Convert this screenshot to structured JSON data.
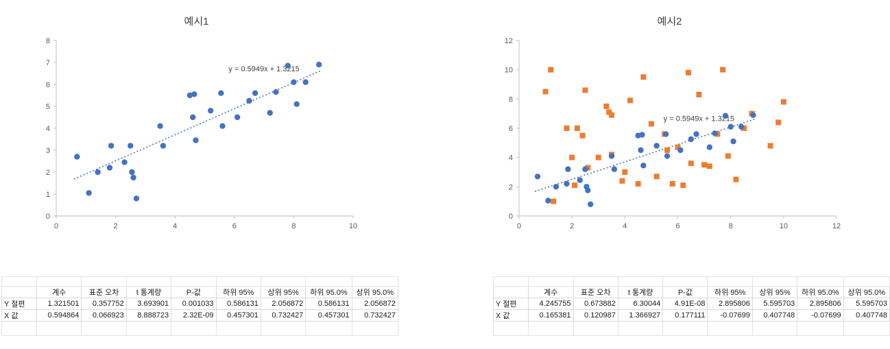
{
  "colors": {
    "series_blue": "#4472C4",
    "series_orange": "#ED7D31",
    "axis_line": "#BFBFBF",
    "tick_text": "#595959",
    "equation_text": "#404040"
  },
  "chart_data": [
    {
      "type": "scatter",
      "title": "예시1",
      "xlabel": "",
      "ylabel": "",
      "xlim": [
        0,
        10
      ],
      "ylim": [
        0,
        8
      ],
      "xticks": [
        0,
        2,
        4,
        6,
        8,
        10
      ],
      "yticks": [
        0,
        1,
        2,
        3,
        4,
        5,
        6,
        7,
        8
      ],
      "grid": false,
      "legend": "none",
      "series": [
        {
          "name": "blue-dots",
          "marker": "circle",
          "color": "#4472C4",
          "points": [
            [
              0.7,
              2.7
            ],
            [
              1.1,
              1.05
            ],
            [
              1.4,
              2.0
            ],
            [
              1.8,
              2.2
            ],
            [
              1.85,
              3.2
            ],
            [
              2.3,
              2.45
            ],
            [
              2.5,
              3.2
            ],
            [
              2.55,
              2.0
            ],
            [
              2.6,
              1.75
            ],
            [
              2.7,
              0.8
            ],
            [
              3.5,
              4.1
            ],
            [
              3.6,
              3.2
            ],
            [
              4.5,
              5.5
            ],
            [
              4.65,
              5.55
            ],
            [
              4.6,
              4.5
            ],
            [
              4.7,
              3.45
            ],
            [
              5.2,
              4.8
            ],
            [
              5.55,
              5.6
            ],
            [
              5.6,
              4.1
            ],
            [
              6.1,
              4.5
            ],
            [
              6.5,
              5.25
            ],
            [
              6.7,
              5.6
            ],
            [
              7.2,
              4.7
            ],
            [
              7.4,
              5.65
            ],
            [
              7.8,
              6.85
            ],
            [
              8.0,
              6.1
            ],
            [
              8.1,
              5.1
            ],
            [
              8.4,
              6.1
            ],
            [
              8.85,
              6.9
            ]
          ]
        }
      ],
      "trendline": {
        "equation": "y = 0.5949x + 1.3215",
        "slope": 0.5949,
        "intercept": 1.3215,
        "x_start": 0.6,
        "x_end": 8.9,
        "style": "dotted",
        "color": "#4472C4",
        "label_pos": [
          7.0,
          6.6
        ]
      }
    },
    {
      "type": "scatter",
      "title": "예시2",
      "xlabel": "",
      "ylabel": "",
      "xlim": [
        0,
        12
      ],
      "ylim": [
        0,
        12
      ],
      "xticks": [
        0,
        2,
        4,
        6,
        8,
        10,
        12
      ],
      "yticks": [
        0,
        2,
        4,
        6,
        8,
        10,
        12
      ],
      "grid": false,
      "legend": "none",
      "series": [
        {
          "name": "orange-squares",
          "marker": "square",
          "color": "#ED7D31",
          "points": [
            [
              1.0,
              8.5
            ],
            [
              1.2,
              10.0
            ],
            [
              1.3,
              1.0
            ],
            [
              1.8,
              6.0
            ],
            [
              2.0,
              4.0
            ],
            [
              2.1,
              2.1
            ],
            [
              2.2,
              6.0
            ],
            [
              2.4,
              5.5
            ],
            [
              2.5,
              8.6
            ],
            [
              2.6,
              3.3
            ],
            [
              3.0,
              4.0
            ],
            [
              3.3,
              7.5
            ],
            [
              3.4,
              7.1
            ],
            [
              3.5,
              6.9
            ],
            [
              3.5,
              4.2
            ],
            [
              3.9,
              2.4
            ],
            [
              4.0,
              3.0
            ],
            [
              4.2,
              7.9
            ],
            [
              4.5,
              2.2
            ],
            [
              4.7,
              9.5
            ],
            [
              5.0,
              6.3
            ],
            [
              5.2,
              2.7
            ],
            [
              5.5,
              5.6
            ],
            [
              5.6,
              4.5
            ],
            [
              5.8,
              2.2
            ],
            [
              6.0,
              4.7
            ],
            [
              6.2,
              2.1
            ],
            [
              6.4,
              9.8
            ],
            [
              6.5,
              3.6
            ],
            [
              6.8,
              8.3
            ],
            [
              7.0,
              3.5
            ],
            [
              7.2,
              3.4
            ],
            [
              7.5,
              5.6
            ],
            [
              7.7,
              10.0
            ],
            [
              7.9,
              4.1
            ],
            [
              8.2,
              2.5
            ],
            [
              8.5,
              6.0
            ],
            [
              8.8,
              7.0
            ],
            [
              9.5,
              4.8
            ],
            [
              9.8,
              6.4
            ],
            [
              10.0,
              7.8
            ]
          ]
        },
        {
          "name": "blue-dots",
          "marker": "circle",
          "color": "#4472C4",
          "points": [
            [
              0.7,
              2.7
            ],
            [
              1.1,
              1.05
            ],
            [
              1.4,
              2.0
            ],
            [
              1.8,
              2.2
            ],
            [
              1.85,
              3.2
            ],
            [
              2.3,
              2.45
            ],
            [
              2.5,
              3.2
            ],
            [
              2.55,
              2.0
            ],
            [
              2.6,
              1.75
            ],
            [
              2.7,
              0.8
            ],
            [
              3.5,
              4.1
            ],
            [
              3.6,
              3.2
            ],
            [
              4.5,
              5.5
            ],
            [
              4.65,
              5.55
            ],
            [
              4.6,
              4.5
            ],
            [
              4.7,
              3.45
            ],
            [
              5.2,
              4.8
            ],
            [
              5.55,
              5.6
            ],
            [
              5.6,
              4.1
            ],
            [
              6.1,
              4.5
            ],
            [
              6.5,
              5.25
            ],
            [
              6.7,
              5.6
            ],
            [
              7.2,
              4.7
            ],
            [
              7.4,
              5.65
            ],
            [
              7.8,
              6.85
            ],
            [
              8.0,
              6.1
            ],
            [
              8.1,
              5.1
            ],
            [
              8.4,
              6.1
            ],
            [
              8.85,
              6.9
            ]
          ]
        }
      ],
      "trendline": {
        "equation": "y = 0.5949x + 1.3215",
        "slope": 0.5949,
        "intercept": 1.3215,
        "x_start": 0.6,
        "x_end": 8.9,
        "style": "dotted",
        "color": "#4472C4",
        "label_pos": [
          6.8,
          6.5
        ]
      }
    }
  ],
  "tables": {
    "headers": [
      "계수",
      "표준 오차",
      "t 통계량",
      "P-값",
      "하위 95%",
      "상위 95%",
      "하위 95.0%",
      "상위 95.0%"
    ],
    "left": {
      "rows": [
        {
          "label": "Y 절편",
          "values": [
            "1.321501",
            "0.357752",
            "3.693901",
            "0.001033",
            "0.586131",
            "2.056872",
            "0.586131",
            "2.056872"
          ]
        },
        {
          "label": "X 값",
          "values": [
            "0.594864",
            "0.066923",
            "8.888723",
            "2.32E-09",
            "0.457301",
            "0.732427",
            "0.457301",
            "0.732427"
          ]
        }
      ]
    },
    "right": {
      "rows": [
        {
          "label": "Y 절편",
          "values": [
            "4.245755",
            "0.673882",
            "6.30044",
            "4.91E-08",
            "2.895806",
            "5.595703",
            "2.895806",
            "5.595703"
          ]
        },
        {
          "label": "X 값",
          "values": [
            "0.165381",
            "0.120987",
            "1.366927",
            "0.177111",
            "-0.07699",
            "0.407748",
            "-0.07699",
            "0.407748"
          ]
        }
      ]
    }
  }
}
